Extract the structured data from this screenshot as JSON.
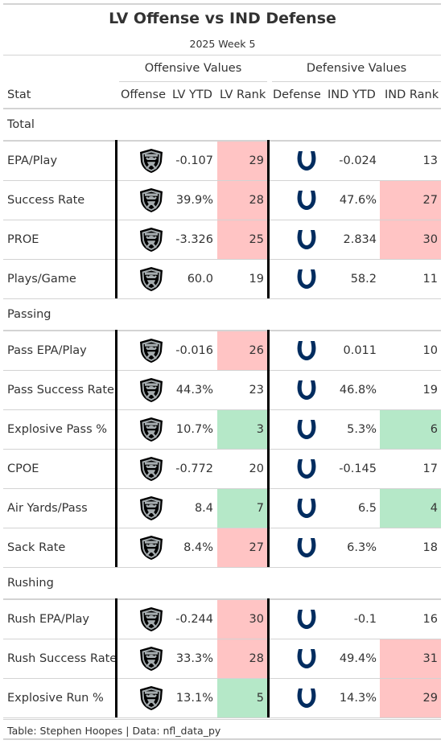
{
  "title": "LV Offense vs IND Defense",
  "subtitle": "2025 Week 5",
  "spanners": {
    "offense": "Offensive Values",
    "defense": "Defensive Values"
  },
  "columns": {
    "stat": "Stat",
    "offense": "Offense",
    "lv_ytd": "LV YTD",
    "lv_rank": "LV Rank",
    "defense": "Defense",
    "ind_ytd": "IND YTD",
    "ind_rank": "IND Rank"
  },
  "colors": {
    "bad": "#ffc4c4",
    "good": "#b5e8c8",
    "raiders_black": "#000000",
    "raiders_silver": "#a5acaf",
    "colts_blue": "#002c5f"
  },
  "icons": {
    "offense": "raiders-logo-icon",
    "defense": "colts-horseshoe-icon"
  },
  "groups": [
    {
      "name": "Total",
      "rows": [
        {
          "stat": "EPA/Play",
          "lv_ytd": "-0.107",
          "lv_rank": "29",
          "lv_color": "bad",
          "ind_ytd": "-0.024",
          "ind_rank": "13",
          "ind_color": ""
        },
        {
          "stat": "Success Rate",
          "lv_ytd": "39.9%",
          "lv_rank": "28",
          "lv_color": "bad",
          "ind_ytd": "47.6%",
          "ind_rank": "27",
          "ind_color": "bad"
        },
        {
          "stat": "PROE",
          "lv_ytd": "-3.326",
          "lv_rank": "25",
          "lv_color": "bad",
          "ind_ytd": "2.834",
          "ind_rank": "30",
          "ind_color": "bad"
        },
        {
          "stat": "Plays/Game",
          "lv_ytd": "60.0",
          "lv_rank": "19",
          "lv_color": "",
          "ind_ytd": "58.2",
          "ind_rank": "11",
          "ind_color": ""
        }
      ]
    },
    {
      "name": "Passing",
      "rows": [
        {
          "stat": "Pass EPA/Play",
          "lv_ytd": "-0.016",
          "lv_rank": "26",
          "lv_color": "bad",
          "ind_ytd": "0.011",
          "ind_rank": "10",
          "ind_color": ""
        },
        {
          "stat": "Pass Success Rate",
          "lv_ytd": "44.3%",
          "lv_rank": "23",
          "lv_color": "",
          "ind_ytd": "46.8%",
          "ind_rank": "19",
          "ind_color": ""
        },
        {
          "stat": "Explosive Pass %",
          "lv_ytd": "10.7%",
          "lv_rank": "3",
          "lv_color": "good",
          "ind_ytd": "5.3%",
          "ind_rank": "6",
          "ind_color": "good"
        },
        {
          "stat": "CPOE",
          "lv_ytd": "-0.772",
          "lv_rank": "20",
          "lv_color": "",
          "ind_ytd": "-0.145",
          "ind_rank": "17",
          "ind_color": ""
        },
        {
          "stat": "Air Yards/Pass",
          "lv_ytd": "8.4",
          "lv_rank": "7",
          "lv_color": "good",
          "ind_ytd": "6.5",
          "ind_rank": "4",
          "ind_color": "good"
        },
        {
          "stat": "Sack Rate",
          "lv_ytd": "8.4%",
          "lv_rank": "27",
          "lv_color": "bad",
          "ind_ytd": "6.3%",
          "ind_rank": "18",
          "ind_color": ""
        }
      ]
    },
    {
      "name": "Rushing",
      "rows": [
        {
          "stat": "Rush EPA/Play",
          "lv_ytd": "-0.244",
          "lv_rank": "30",
          "lv_color": "bad",
          "ind_ytd": "-0.1",
          "ind_rank": "16",
          "ind_color": ""
        },
        {
          "stat": "Rush Success Rate",
          "lv_ytd": "33.3%",
          "lv_rank": "28",
          "lv_color": "bad",
          "ind_ytd": "49.4%",
          "ind_rank": "31",
          "ind_color": "bad"
        },
        {
          "stat": "Explosive Run %",
          "lv_ytd": "13.1%",
          "lv_rank": "5",
          "lv_color": "good",
          "ind_ytd": "14.3%",
          "ind_rank": "29",
          "ind_color": "bad"
        }
      ]
    }
  ],
  "source": "Table: Stephen Hoopes | Data: nfl_data_py"
}
